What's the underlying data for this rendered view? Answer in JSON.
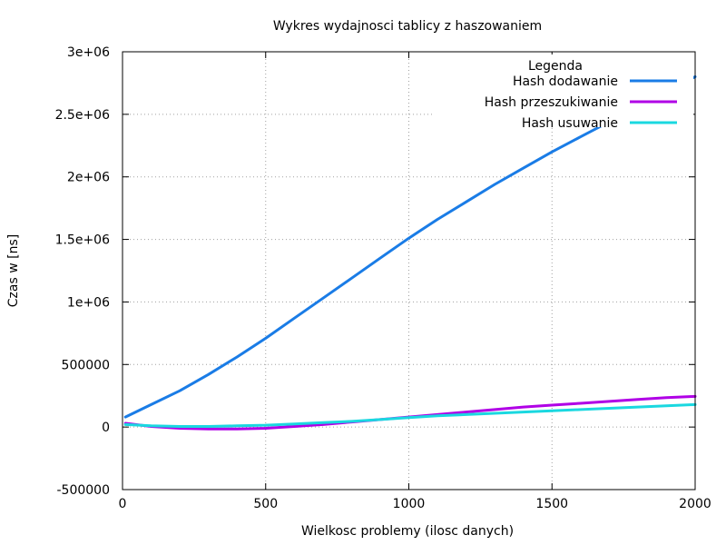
{
  "chart_data": {
    "type": "line",
    "title": "Wykres wydajnosci tablicy z haszowaniem",
    "xlabel": "Wielkosc problemy (ilosc danych)",
    "ylabel": "Czas w [ns]",
    "xlim": [
      0,
      2000
    ],
    "ylim": [
      -500000,
      3000000
    ],
    "x_ticks": [
      0,
      500,
      1000,
      1500,
      2000
    ],
    "x_tick_labels": [
      "0",
      "500",
      "1000",
      "1500",
      "2000"
    ],
    "y_ticks": [
      -500000,
      0,
      500000,
      1000000,
      1500000,
      2000000,
      2500000,
      3000000
    ],
    "y_tick_labels": [
      "-500000",
      "0",
      "500000",
      "1e+06",
      "1.5e+06",
      "2e+06",
      "2.5e+06",
      "3e+06"
    ],
    "grid": true,
    "legend_title": "Legenda",
    "legend_position": "top-right",
    "x": [
      10,
      100,
      200,
      300,
      400,
      500,
      600,
      700,
      800,
      900,
      1000,
      1100,
      1200,
      1300,
      1400,
      1500,
      1600,
      1700,
      1800,
      1900,
      2000
    ],
    "series": [
      {
        "name": "Hash dodawanie",
        "color": "#1a7ce6",
        "values": [
          80000,
          180000,
          290000,
          420000,
          560000,
          710000,
          870000,
          1030000,
          1190000,
          1350000,
          1510000,
          1660000,
          1800000,
          1940000,
          2070000,
          2200000,
          2320000,
          2440000,
          2560000,
          2680000,
          2800000
        ]
      },
      {
        "name": "Hash przeszukiwanie",
        "color": "#b000e6",
        "values": [
          30000,
          5000,
          -10000,
          -15000,
          -15000,
          -10000,
          5000,
          20000,
          40000,
          60000,
          80000,
          100000,
          120000,
          140000,
          160000,
          175000,
          190000,
          205000,
          220000,
          235000,
          245000
        ]
      },
      {
        "name": "Hash usuwanie",
        "color": "#1ad8e0",
        "values": [
          20000,
          10000,
          5000,
          5000,
          10000,
          15000,
          25000,
          35000,
          45000,
          60000,
          75000,
          90000,
          100000,
          110000,
          120000,
          130000,
          140000,
          150000,
          160000,
          170000,
          180000
        ]
      }
    ]
  }
}
